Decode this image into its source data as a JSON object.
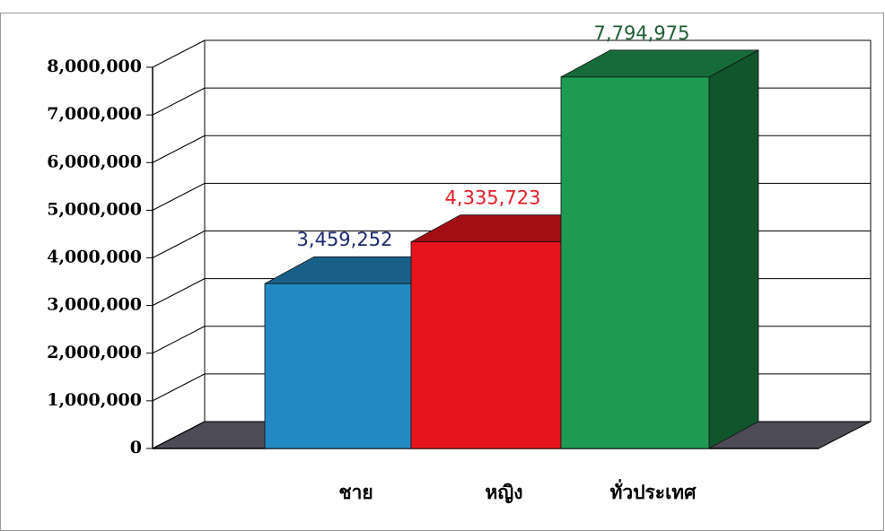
{
  "chart_data": {
    "type": "bar3d",
    "categories": [
      "ชาย",
      "หญิง",
      "ทั่วประเทศ"
    ],
    "values": [
      3459252,
      4335723,
      7794975
    ],
    "value_labels": [
      "3,459,252",
      "4,335,723",
      "7,794,975"
    ],
    "colors": [
      "#2389c2",
      "#e8141c",
      "#1f9a52"
    ],
    "label_colors": [
      "#1c2a6e",
      "#e0202a",
      "#1d5e34"
    ],
    "ylim": [
      0,
      8000000
    ],
    "yticks": [
      0,
      {
        "value": 1000000,
        "label": "1,000,000"
      },
      {
        "value": 2000000,
        "label": "2,000,000"
      },
      {
        "value": 3000000,
        "label": "3,000,000"
      },
      {
        "value": 4000000,
        "label": "4,000,000"
      },
      {
        "value": 5000000,
        "label": "5,000,000"
      },
      {
        "value": 6000000,
        "label": "6,000,000"
      },
      {
        "value": 7000000,
        "label": "7,000,000"
      },
      {
        "value": 8000000,
        "label": "8,000,000"
      }
    ],
    "grid": true
  }
}
